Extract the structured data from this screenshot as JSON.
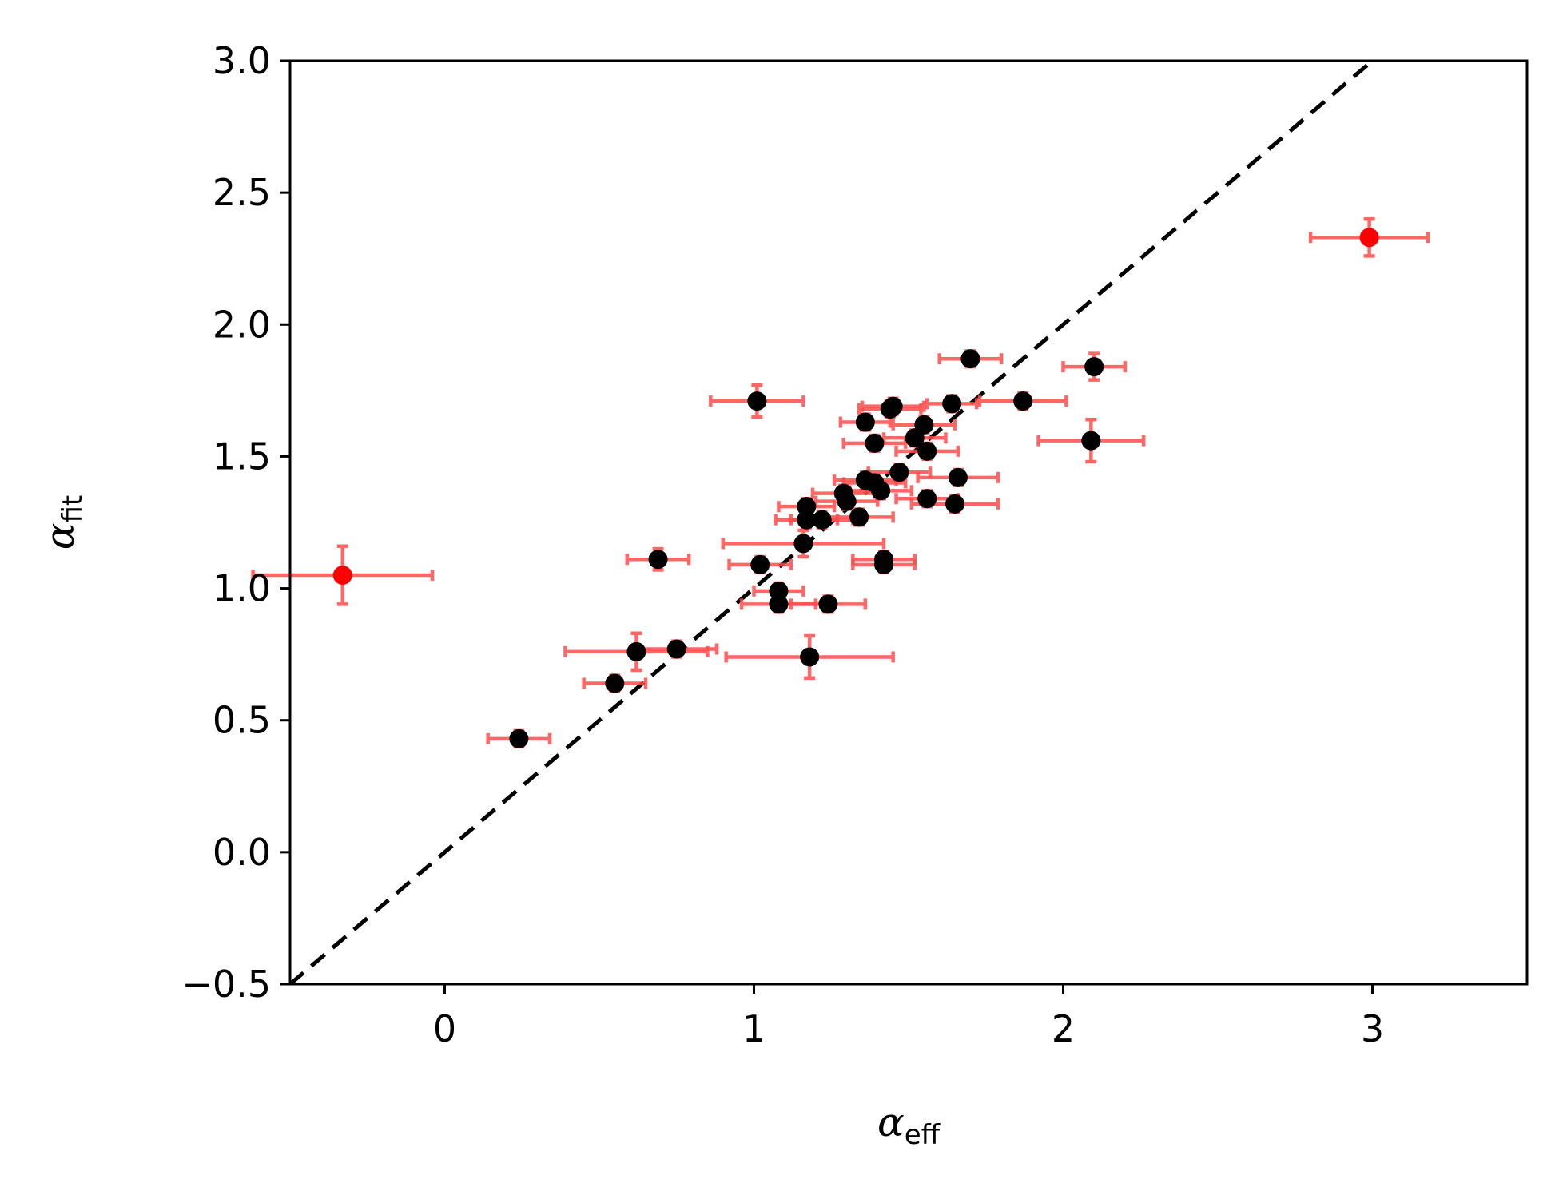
{
  "chart_data": {
    "type": "scatter",
    "title": "",
    "xlabel": {
      "symbol": "α",
      "subscript": "eff"
    },
    "ylabel": {
      "symbol": "α",
      "subscript": "fit"
    },
    "xlim": [
      -0.5,
      3.5
    ],
    "ylim": [
      -0.5,
      3.0
    ],
    "xticks": [
      0,
      1,
      2,
      3
    ],
    "xtick_labels": [
      "0",
      "1",
      "2",
      "3"
    ],
    "yticks": [
      -0.5,
      0.0,
      0.5,
      1.0,
      1.5,
      2.0,
      2.5,
      3.0
    ],
    "ytick_labels": [
      "−0.5",
      "0.0",
      "0.5",
      "1.0",
      "1.5",
      "2.0",
      "2.5",
      "3.0"
    ],
    "grid": false,
    "reference_line": {
      "slope": 1,
      "intercept": 0,
      "style": "dashed",
      "color": "#000000"
    },
    "colors": {
      "point": "#000000",
      "outlier": "#ff0000",
      "errorbar": "#ff4d4d"
    },
    "points": [
      {
        "x": -0.33,
        "y": 1.05,
        "xerr": 0.29,
        "yerr": 0.11,
        "outlier": true
      },
      {
        "x": 2.99,
        "y": 2.33,
        "xerr": 0.19,
        "yerr": 0.07,
        "outlier": true
      },
      {
        "x": 0.24,
        "y": 0.43,
        "xerr": 0.1,
        "yerr": 0.03
      },
      {
        "x": 0.55,
        "y": 0.64,
        "xerr": 0.1,
        "yerr": 0.03
      },
      {
        "x": 0.62,
        "y": 0.76,
        "xerr": 0.23,
        "yerr": 0.07
      },
      {
        "x": 0.75,
        "y": 0.77,
        "xerr": 0.13,
        "yerr": 0.03
      },
      {
        "x": 0.69,
        "y": 1.11,
        "xerr": 0.1,
        "yerr": 0.04
      },
      {
        "x": 1.01,
        "y": 1.71,
        "xerr": 0.15,
        "yerr": 0.06
      },
      {
        "x": 1.18,
        "y": 0.74,
        "xerr": 0.27,
        "yerr": 0.08
      },
      {
        "x": 1.02,
        "y": 1.09,
        "xerr": 0.1,
        "yerr": 0.03
      },
      {
        "x": 1.08,
        "y": 0.99,
        "xerr": 0.08,
        "yerr": 0.03
      },
      {
        "x": 1.08,
        "y": 0.94,
        "xerr": 0.12,
        "yerr": 0.03
      },
      {
        "x": 1.24,
        "y": 0.94,
        "xerr": 0.12,
        "yerr": 0.03
      },
      {
        "x": 1.16,
        "y": 1.17,
        "xerr": 0.26,
        "yerr": 0.05
      },
      {
        "x": 1.17,
        "y": 1.31,
        "xerr": 0.09,
        "yerr": 0.03
      },
      {
        "x": 1.17,
        "y": 1.26,
        "xerr": 0.1,
        "yerr": 0.03
      },
      {
        "x": 1.22,
        "y": 1.26,
        "xerr": 0.1,
        "yerr": 0.03
      },
      {
        "x": 1.29,
        "y": 1.36,
        "xerr": 0.1,
        "yerr": 0.03
      },
      {
        "x": 1.3,
        "y": 1.33,
        "xerr": 0.1,
        "yerr": 0.03
      },
      {
        "x": 1.34,
        "y": 1.27,
        "xerr": 0.11,
        "yerr": 0.03
      },
      {
        "x": 1.36,
        "y": 1.41,
        "xerr": 0.1,
        "yerr": 0.03
      },
      {
        "x": 1.41,
        "y": 1.37,
        "xerr": 0.1,
        "yerr": 0.03
      },
      {
        "x": 1.39,
        "y": 1.4,
        "xerr": 0.1,
        "yerr": 0.03
      },
      {
        "x": 1.36,
        "y": 1.63,
        "xerr": 0.08,
        "yerr": 0.03
      },
      {
        "x": 1.39,
        "y": 1.55,
        "xerr": 0.1,
        "yerr": 0.03
      },
      {
        "x": 1.45,
        "y": 1.69,
        "xerr": 0.1,
        "yerr": 0.03
      },
      {
        "x": 1.44,
        "y": 1.68,
        "xerr": 0.1,
        "yerr": 0.03
      },
      {
        "x": 1.47,
        "y": 1.44,
        "xerr": 0.1,
        "yerr": 0.03
      },
      {
        "x": 1.42,
        "y": 1.11,
        "xerr": 0.1,
        "yerr": 0.03
      },
      {
        "x": 1.42,
        "y": 1.09,
        "xerr": 0.1,
        "yerr": 0.03
      },
      {
        "x": 1.52,
        "y": 1.57,
        "xerr": 0.1,
        "yerr": 0.03
      },
      {
        "x": 1.55,
        "y": 1.62,
        "xerr": 0.1,
        "yerr": 0.03
      },
      {
        "x": 1.56,
        "y": 1.52,
        "xerr": 0.1,
        "yerr": 0.03
      },
      {
        "x": 1.56,
        "y": 1.34,
        "xerr": 0.1,
        "yerr": 0.03
      },
      {
        "x": 1.64,
        "y": 1.7,
        "xerr": 0.08,
        "yerr": 0.03
      },
      {
        "x": 1.66,
        "y": 1.42,
        "xerr": 0.13,
        "yerr": 0.03
      },
      {
        "x": 1.65,
        "y": 1.32,
        "xerr": 0.14,
        "yerr": 0.03
      },
      {
        "x": 1.7,
        "y": 1.87,
        "xerr": 0.1,
        "yerr": 0.03
      },
      {
        "x": 1.87,
        "y": 1.71,
        "xerr": 0.14,
        "yerr": 0.03
      },
      {
        "x": 2.09,
        "y": 1.56,
        "xerr": 0.17,
        "yerr": 0.08
      },
      {
        "x": 2.1,
        "y": 1.84,
        "xerr": 0.1,
        "yerr": 0.05
      }
    ]
  }
}
